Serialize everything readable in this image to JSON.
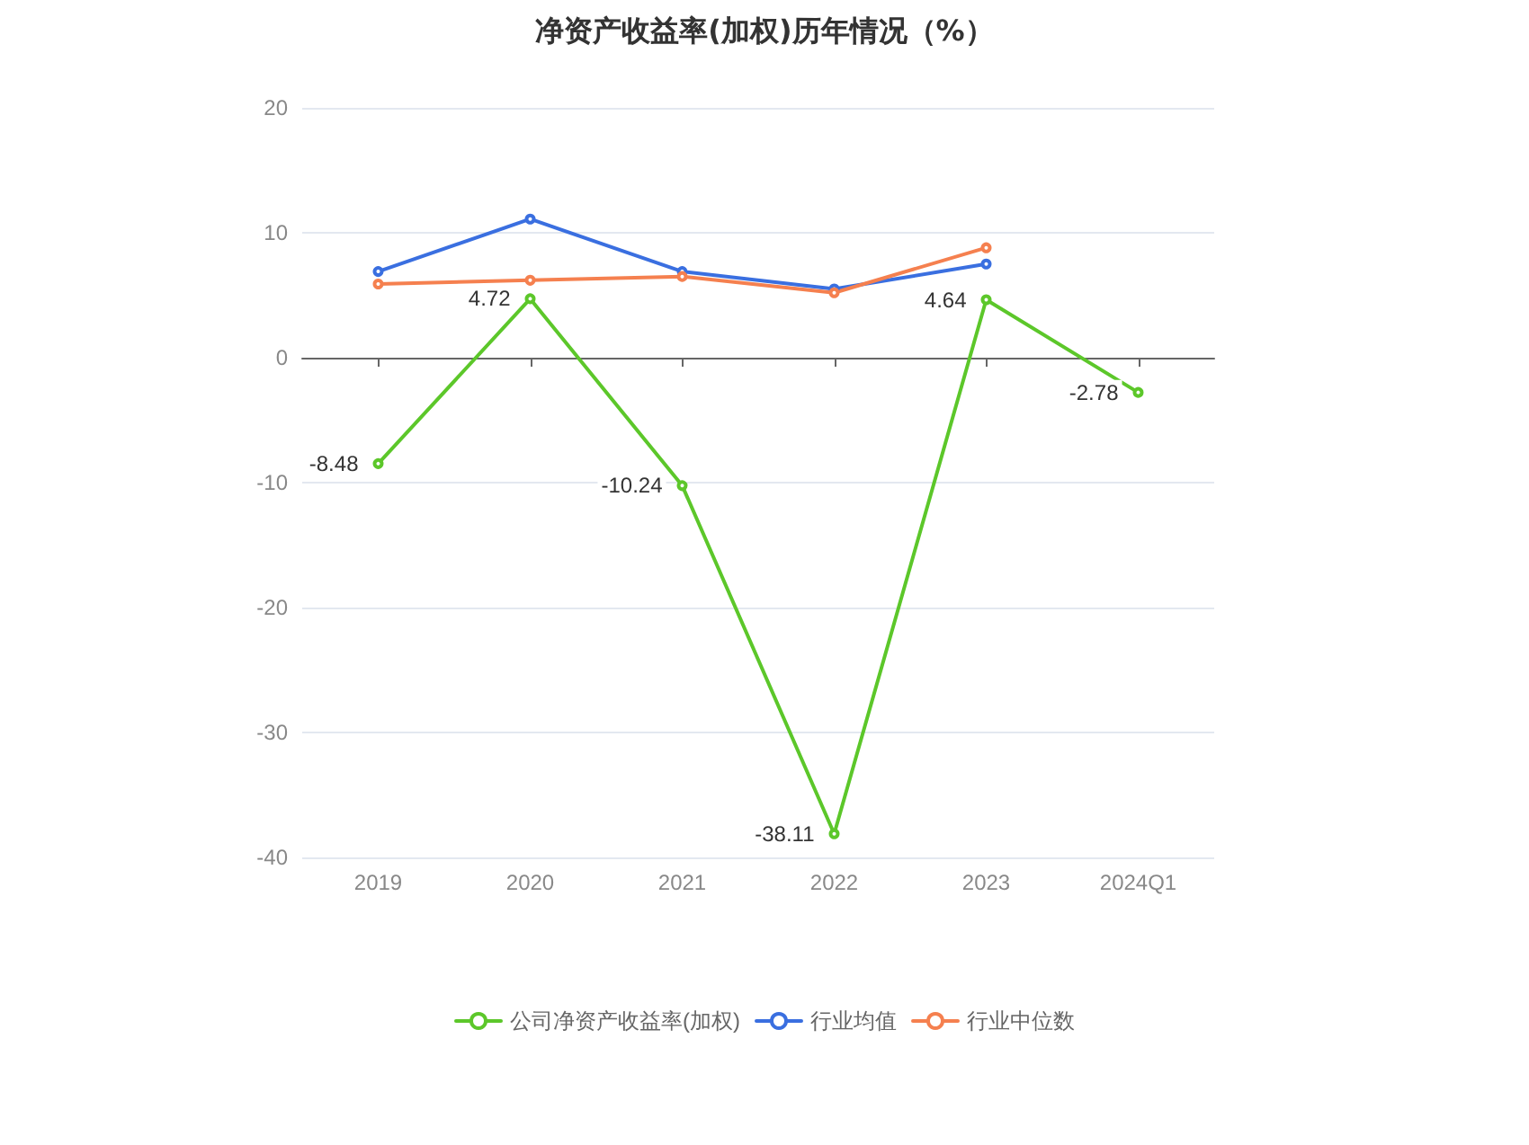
{
  "chart_data": {
    "type": "line",
    "title": "净资产收益率(加权)历年情况（%）",
    "categories": [
      "2019",
      "2020",
      "2021",
      "2022",
      "2023",
      "2024Q1"
    ],
    "series": [
      {
        "name": "公司净资产收益率(加权)",
        "color": "#5cc72a",
        "values": [
          -8.48,
          4.72,
          -10.24,
          -38.11,
          4.64,
          -2.78
        ],
        "value_labels": [
          "-8.48",
          "4.72",
          "-10.24",
          "-38.11",
          "4.64",
          "-2.78"
        ]
      },
      {
        "name": "行业均值",
        "color": "#3a6fe0",
        "values": [
          6.9,
          11.1,
          6.9,
          5.5,
          7.5,
          null
        ]
      },
      {
        "name": "行业中位数",
        "color": "#f5804f",
        "values": [
          5.9,
          6.2,
          6.5,
          5.2,
          8.8,
          null
        ]
      }
    ],
    "ylim": [
      -40,
      20
    ],
    "yticks": [
      -40,
      -30,
      -20,
      -10,
      0,
      10,
      20
    ],
    "grid": "y",
    "legend": "bottom",
    "marker": "circle",
    "line_style": "solid"
  }
}
